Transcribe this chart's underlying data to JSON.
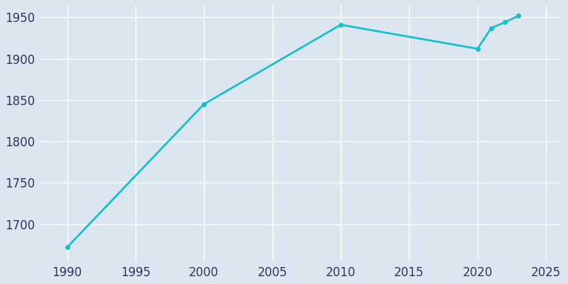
{
  "years": [
    1990,
    2000,
    2010,
    2020,
    2021,
    2022,
    2023
  ],
  "population": [
    1672,
    1845,
    1941,
    1912,
    1937,
    1944,
    1952
  ],
  "line_color": "#17becf",
  "bg_color": "#dce6f0",
  "plot_bg_color": "#dce6f0",
  "grid_color": "#ffffff",
  "tick_color": "#2d3561",
  "xlim": [
    1988,
    2026
  ],
  "ylim": [
    1655,
    1965
  ],
  "xticks": [
    1990,
    1995,
    2000,
    2005,
    2010,
    2015,
    2020,
    2025
  ],
  "yticks": [
    1700,
    1750,
    1800,
    1850,
    1900,
    1950
  ],
  "linewidth": 2.0,
  "marker": "o",
  "markersize": 4,
  "tick_fontsize": 12
}
